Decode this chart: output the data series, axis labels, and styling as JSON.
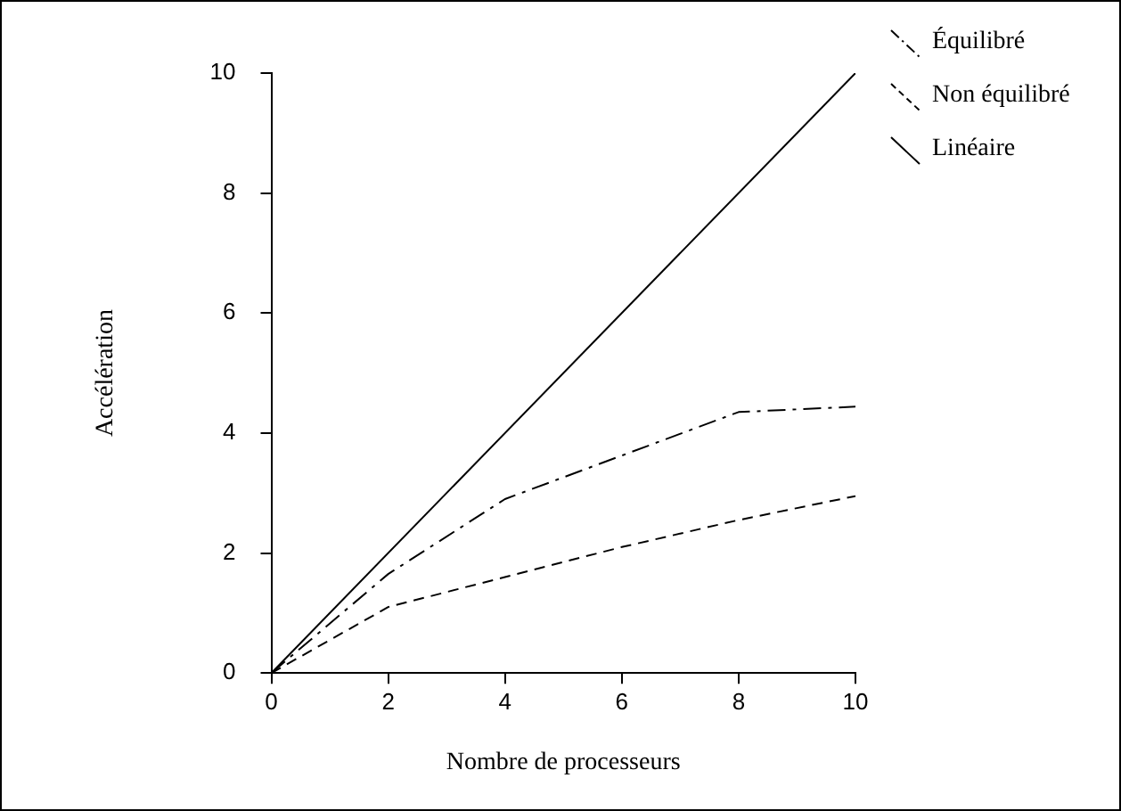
{
  "chart_data": {
    "type": "line",
    "xlabel": "Nombre de processeurs",
    "ylabel": "Accélération",
    "xlim": [
      0,
      10
    ],
    "xticks": [
      0,
      2,
      4,
      6,
      8,
      10
    ],
    "ylim": [
      0,
      10
    ],
    "yticks": [
      0,
      2,
      4,
      6,
      8,
      10
    ],
    "grid": false,
    "legend": "top right",
    "marker": "none",
    "series": [
      {
        "name": "Équilibré",
        "color": "#000000",
        "line_style": "dashdot",
        "x": [
          0,
          2,
          4,
          8,
          10
        ],
        "values": [
          0,
          1.65,
          2.9,
          4.35,
          4.44
        ]
      },
      {
        "name": "Non équilibré",
        "color": "#000000",
        "line_style": "dashed",
        "x": [
          0,
          2,
          4,
          6,
          8,
          10
        ],
        "values": [
          0,
          1.1,
          1.6,
          2.1,
          2.55,
          2.95
        ]
      },
      {
        "name": "Linéaire",
        "color": "#000000",
        "line_style": "solid",
        "x": [
          0,
          10
        ],
        "values": [
          0,
          10
        ]
      }
    ]
  }
}
